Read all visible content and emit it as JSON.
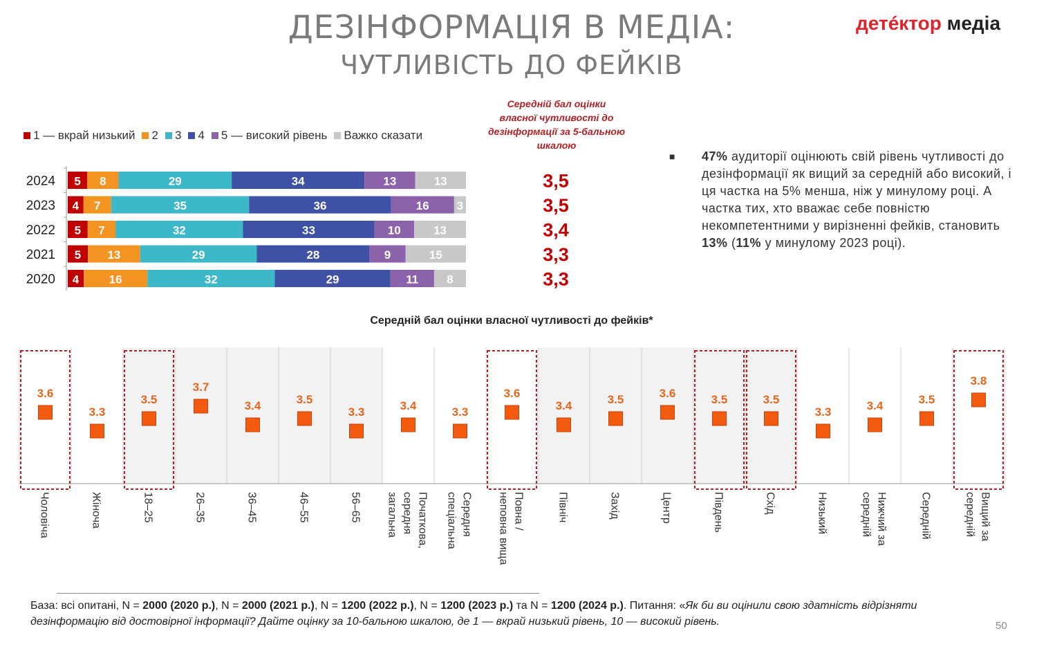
{
  "header": {
    "title_line1": "ДЕЗІНФОРМАЦІЯ В МЕДІА:",
    "title_line2": "ЧУТЛИВІСТЬ ДО ФЕЙКІВ",
    "logo_part1": "детéктор",
    "logo_part2": "медіа"
  },
  "legend": [
    {
      "label": "1 — вкрай низький",
      "color": "#c00000"
    },
    {
      "label": "2",
      "color": "#f39321"
    },
    {
      "label": "3",
      "color": "#3cb8c8"
    },
    {
      "label": "4",
      "color": "#3f51a5"
    },
    {
      "label": "5 — високий рівень",
      "color": "#8c63aa"
    },
    {
      "label": "Важко сказати",
      "color": "#c8c8c8"
    }
  ],
  "score_header": "Середній бал оцінки власної чутливості до дезінформації за 5-бальною шкалою",
  "bullet": {
    "marker": "■",
    "pct1": "47%",
    "text1": " аудиторії оцінюють свій рівень чутливості до дезінформації як вищий за середній або високий, і ця частка на 5% менша, ніж у минулому році.  А частка тих, хто вважає себе повністю некомпетентними у вирізненні фейків, становить ",
    "pct2": "13%",
    "text2": " (",
    "pct3": "11%",
    "text3": " у минулому 2023 році)."
  },
  "chart2_title": "Середній бал оцінки власної чутливості до фейків*",
  "footer": {
    "base_label": "База: всі опитані, N = ",
    "n2020": "2000 (2020 р.)",
    "sep1": ", N = ",
    "n2021": "2000 (2021 р.)",
    "sep2": ", N = ",
    "n2022": "1200 (2022 р.)",
    "sep3": ", N = ",
    "n2023": "1200 (2023 р.)",
    "sep4": " та N = ",
    "n2024": "1200 (2024 р.)",
    "q_label": ". Питання: «",
    "question": "Як би ви оцінили свою здатність відрізняти дезінформацію від достовірної інформації? Дайте оцінку за 10-бальною шкалою, де 1 — вкрай низький рівень, 10 — високий рівень."
  },
  "page_number": "50",
  "chart_data": [
    {
      "type": "bar",
      "orientation": "horizontal-stacked",
      "categories": [
        "2024",
        "2023",
        "2022",
        "2021",
        "2020"
      ],
      "series": [
        {
          "name": "1 — вкрай низький",
          "values": [
            5,
            4,
            5,
            5,
            4
          ]
        },
        {
          "name": "2",
          "values": [
            8,
            7,
            7,
            13,
            16
          ]
        },
        {
          "name": "3",
          "values": [
            29,
            35,
            32,
            29,
            32
          ]
        },
        {
          "name": "4",
          "values": [
            34,
            36,
            33,
            28,
            29
          ]
        },
        {
          "name": "5 — високий рівень",
          "values": [
            13,
            16,
            10,
            9,
            11
          ]
        },
        {
          "name": "Важко сказати",
          "values": [
            13,
            3,
            13,
            15,
            8
          ]
        }
      ],
      "mean_scores": [
        "3,5",
        "3,5",
        "3,4",
        "3,3",
        "3,3"
      ],
      "legend_position": "top"
    },
    {
      "type": "scatter",
      "title": "Середній бал оцінки власної чутливості до фейків*",
      "categories": [
        "Чоловіча",
        "Жіноча",
        "18-25",
        "26–35",
        "36–45",
        "46–55",
        "56–65",
        "Початкова, середня загальна",
        "Середня спеціальна",
        "Повна / неповна вища",
        "Північ",
        "Захід",
        "Центр",
        "Південь",
        "Схід",
        "Низький",
        "Нижчий за середній",
        "Середній",
        "Вищий за середній"
      ],
      "category_lines": [
        [
          "Чоловіча"
        ],
        [
          "Жіноча"
        ],
        [
          "18–25"
        ],
        [
          "26–35"
        ],
        [
          "36–45"
        ],
        [
          "46–55"
        ],
        [
          "56–65"
        ],
        [
          "Початкова,",
          "середня",
          "загальна"
        ],
        [
          "Середня",
          "спеціальна"
        ],
        [
          "Повна /",
          "неповна вища"
        ],
        [
          "Північ"
        ],
        [
          "Захід"
        ],
        [
          "Центр"
        ],
        [
          "Південь"
        ],
        [
          "Схід"
        ],
        [
          "Низький"
        ],
        [
          "Нижчий за",
          "середній"
        ],
        [
          "Середній"
        ],
        [
          "Вищий за",
          "середній"
        ]
      ],
      "values": [
        3.6,
        3.3,
        3.5,
        3.7,
        3.4,
        3.5,
        3.3,
        3.4,
        3.3,
        3.6,
        3.4,
        3.5,
        3.6,
        3.5,
        3.5,
        3.3,
        3.4,
        3.5,
        3.8
      ],
      "labels": [
        "3.6",
        "3.3",
        "3.5",
        "3.7",
        "3.4",
        "3.5",
        "3.3",
        "3.4",
        "3.3",
        "3.6",
        "3.4",
        "3.5",
        "3.6",
        "3.5",
        "3.5",
        "3.3",
        "3.4",
        "3.5",
        "3.8"
      ],
      "shaded_columns": [
        2,
        3,
        4,
        5,
        6,
        10,
        11,
        12,
        13,
        14
      ],
      "highlighted_columns": [
        0,
        2,
        9,
        13,
        14,
        18
      ],
      "marker_color": "#f15a0f"
    }
  ]
}
